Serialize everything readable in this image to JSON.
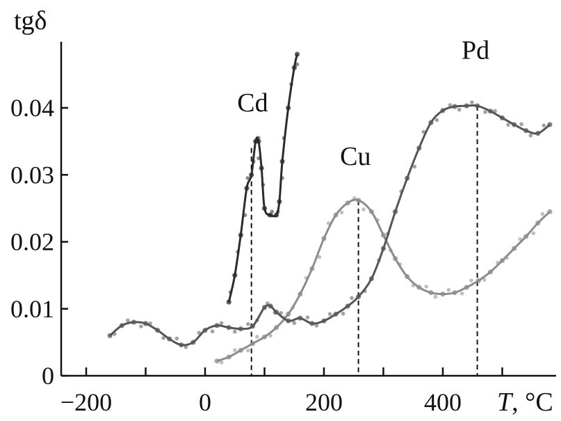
{
  "chart_data": {
    "type": "line",
    "ylabel": "tgδ",
    "xlabel": "T, °C",
    "xlabel_italic": "T",
    "xlabel_rest": ", °C",
    "xlim": [
      -240,
      600
    ],
    "ylim": [
      0,
      0.048
    ],
    "x_ticks": [
      -200,
      0,
      200,
      400
    ],
    "x_tick_labels": [
      "−200",
      "0",
      "200",
      "400"
    ],
    "y_ticks": [
      0,
      0.01,
      0.02,
      0.03,
      0.04
    ],
    "y_tick_labels": [
      "0",
      "0.01",
      "0.02",
      "0.03",
      "0.04"
    ],
    "grid": false,
    "series": [
      {
        "name": "Cd",
        "color": "#2b2b2b",
        "x": [
          40,
          50,
          60,
          70,
          78,
          85,
          90,
          95,
          100,
          110,
          120,
          125,
          130,
          140,
          150,
          155
        ],
        "y": [
          0.011,
          0.015,
          0.021,
          0.028,
          0.03,
          0.035,
          0.035,
          0.031,
          0.025,
          0.024,
          0.024,
          0.026,
          0.032,
          0.04,
          0.046,
          0.048
        ],
        "peak_x": 85,
        "label": {
          "text": "Cd",
          "x": 80,
          "y": 0.0395
        },
        "dashed_marker_x": 78
      },
      {
        "name": "Cu",
        "color": "#8c8c8c",
        "x": [
          20,
          40,
          60,
          80,
          100,
          120,
          140,
          160,
          180,
          200,
          220,
          240,
          258,
          280,
          300,
          320,
          340,
          360,
          380,
          400,
          420,
          440,
          460,
          480,
          500,
          520,
          540,
          560,
          580
        ],
        "y": [
          0.0022,
          0.0028,
          0.0038,
          0.0048,
          0.0058,
          0.0072,
          0.0092,
          0.0122,
          0.016,
          0.0205,
          0.024,
          0.0258,
          0.0262,
          0.0245,
          0.021,
          0.0175,
          0.0148,
          0.0132,
          0.0124,
          0.0122,
          0.0124,
          0.0132,
          0.0142,
          0.0155,
          0.0172,
          0.019,
          0.0208,
          0.0228,
          0.0245
        ],
        "peak_x": 258,
        "label": {
          "text": "Cu",
          "x": 253,
          "y": 0.0315
        },
        "dashed_marker_x": 258
      },
      {
        "name": "Pd",
        "color": "#555555",
        "x": [
          -160,
          -140,
          -120,
          -100,
          -80,
          -60,
          -40,
          -20,
          0,
          20,
          40,
          60,
          80,
          100,
          110,
          120,
          140,
          160,
          180,
          200,
          220,
          240,
          258,
          280,
          300,
          320,
          340,
          360,
          380,
          400,
          420,
          440,
          458,
          480,
          500,
          520,
          540,
          560,
          580
        ],
        "y": [
          0.006,
          0.0075,
          0.008,
          0.0078,
          0.0068,
          0.0055,
          0.0046,
          0.005,
          0.0068,
          0.0075,
          0.0072,
          0.007,
          0.0074,
          0.0102,
          0.0104,
          0.0095,
          0.0082,
          0.0086,
          0.0078,
          0.0082,
          0.0092,
          0.0104,
          0.0118,
          0.0145,
          0.019,
          0.0245,
          0.0295,
          0.034,
          0.0378,
          0.0396,
          0.0402,
          0.0403,
          0.0403,
          0.0395,
          0.0385,
          0.0375,
          0.0366,
          0.0362,
          0.0375
        ],
        "peak_x": 458,
        "label": {
          "text": "Pd",
          "x": 455,
          "y": 0.0473
        },
        "dashed_marker_x": 458
      }
    ]
  }
}
